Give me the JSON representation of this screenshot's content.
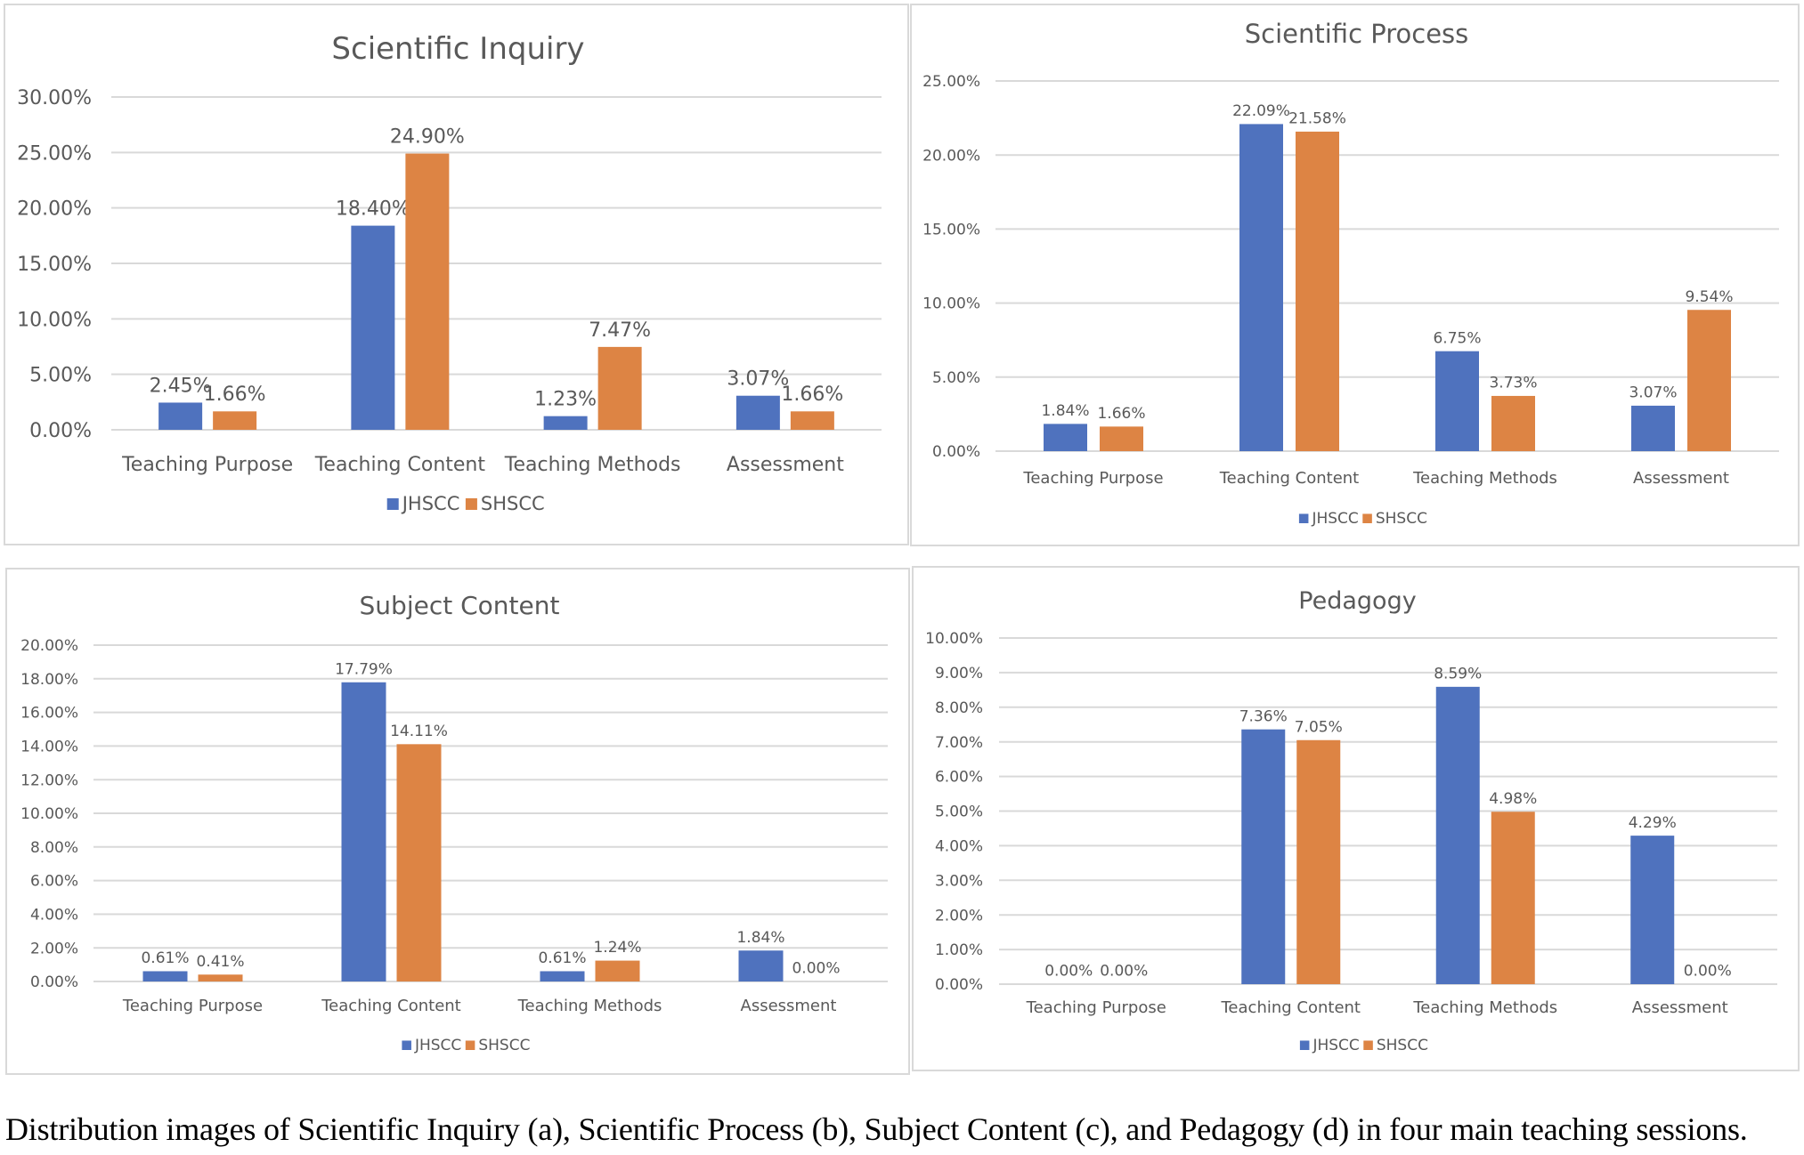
{
  "colors": {
    "JHSCC": "#4f72be",
    "SHSCC": "#dd8444",
    "grid": "#d9d9d9",
    "text": "#595959"
  },
  "caption": "Distribution images of Scientific Inquiry (a), Scientific Process (b), Subject Content (c), and Pedagogy (d) in four main teaching sessions.",
  "chart_data": [
    {
      "type": "bar",
      "title": "Scientific Inquiry",
      "categories": [
        "Teaching Purpose",
        "Teaching Content",
        "Teaching Methods",
        "Assessment"
      ],
      "series": [
        {
          "name": "JHSCC",
          "values": [
            2.45,
            18.4,
            1.23,
            3.07
          ],
          "labels": [
            "2.45%",
            "18.40%",
            "1.23%",
            "3.07%"
          ]
        },
        {
          "name": "SHSCC",
          "values": [
            1.66,
            24.9,
            7.47,
            1.66
          ],
          "labels": [
            "1.66%",
            "24.90%",
            "7.47%",
            "1.66%"
          ]
        }
      ],
      "yticks": [
        "0.00%",
        "5.00%",
        "10.00%",
        "15.00%",
        "20.00%",
        "25.00%",
        "30.00%"
      ],
      "ylim": [
        0,
        30
      ],
      "ystep": 5,
      "xlabel": "",
      "ylabel": "",
      "grid": true,
      "legend": "bottom"
    },
    {
      "type": "bar",
      "title": "Scientific Process",
      "categories": [
        "Teaching Purpose",
        "Teaching Content",
        "Teaching Methods",
        "Assessment"
      ],
      "series": [
        {
          "name": "JHSCC",
          "values": [
            1.84,
            22.09,
            6.75,
            3.07
          ],
          "labels": [
            "1.84%",
            "22.09%",
            "6.75%",
            "3.07%"
          ]
        },
        {
          "name": "SHSCC",
          "values": [
            1.66,
            21.58,
            3.73,
            9.54
          ],
          "labels": [
            "1.66%",
            "21.58%",
            "3.73%",
            "9.54%"
          ]
        }
      ],
      "yticks": [
        "0.00%",
        "5.00%",
        "10.00%",
        "15.00%",
        "20.00%",
        "25.00%"
      ],
      "ylim": [
        0,
        25
      ],
      "ystep": 5,
      "xlabel": "",
      "ylabel": "",
      "grid": true,
      "legend": "bottom"
    },
    {
      "type": "bar",
      "title": "Subject Content",
      "categories": [
        "Teaching Purpose",
        "Teaching Content",
        "Teaching Methods",
        "Assessment"
      ],
      "series": [
        {
          "name": "JHSCC",
          "values": [
            0.61,
            17.79,
            0.61,
            1.84
          ],
          "labels": [
            "0.61%",
            "17.79%",
            "0.61%",
            "1.84%"
          ]
        },
        {
          "name": "SHSCC",
          "values": [
            0.41,
            14.11,
            1.24,
            0.0
          ],
          "labels": [
            "0.41%",
            "14.11%",
            "1.24%",
            "0.00%"
          ]
        }
      ],
      "yticks": [
        "0.00%",
        "2.00%",
        "4.00%",
        "6.00%",
        "8.00%",
        "10.00%",
        "12.00%",
        "14.00%",
        "16.00%",
        "18.00%",
        "20.00%"
      ],
      "ylim": [
        0,
        20
      ],
      "ystep": 2,
      "xlabel": "",
      "ylabel": "",
      "grid": true,
      "legend": "bottom"
    },
    {
      "type": "bar",
      "title": "Pedagogy",
      "categories": [
        "Teaching Purpose",
        "Teaching Content",
        "Teaching Methods",
        "Assessment"
      ],
      "series": [
        {
          "name": "JHSCC",
          "values": [
            0.0,
            7.36,
            8.59,
            4.29
          ],
          "labels": [
            "0.00%",
            "7.36%",
            "8.59%",
            "4.29%"
          ]
        },
        {
          "name": "SHSCC",
          "values": [
            0.0,
            7.05,
            4.98,
            0.0
          ],
          "labels": [
            "0.00%",
            "7.05%",
            "4.98%",
            "0.00%"
          ]
        }
      ],
      "yticks": [
        "0.00%",
        "1.00%",
        "2.00%",
        "3.00%",
        "4.00%",
        "5.00%",
        "6.00%",
        "7.00%",
        "8.00%",
        "9.00%",
        "10.00%"
      ],
      "ylim": [
        0,
        10
      ],
      "ystep": 1,
      "xlabel": "",
      "ylabel": "",
      "grid": true,
      "legend": "bottom"
    }
  ]
}
